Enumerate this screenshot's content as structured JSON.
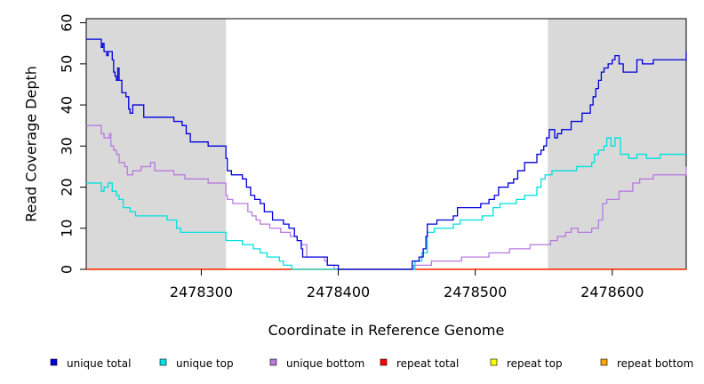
{
  "chart_data": {
    "type": "line",
    "title": "",
    "xlabel": "Coordinate in Reference Genome",
    "ylabel": "Read Coverage Depth",
    "xlim": [
      2478216,
      2478654
    ],
    "ylim": [
      0,
      61
    ],
    "x_ticks": [
      2478300,
      2478400,
      2478500,
      2478600
    ],
    "y_ticks": [
      0,
      10,
      20,
      30,
      40,
      50,
      60
    ],
    "shaded_regions": [
      [
        2478216,
        2478318
      ],
      [
        2478553,
        2478654
      ]
    ],
    "grid": false,
    "legend_position": "bottom",
    "series": [
      {
        "name": "unique total",
        "color": "#0000dd",
        "points": [
          [
            2478216,
            56
          ],
          [
            2478225,
            56
          ],
          [
            2478227,
            54
          ],
          [
            2478228,
            55
          ],
          [
            2478229,
            53
          ],
          [
            2478231,
            52
          ],
          [
            2478232,
            53
          ],
          [
            2478235,
            51
          ],
          [
            2478236,
            48
          ],
          [
            2478237,
            47
          ],
          [
            2478238,
            46
          ],
          [
            2478239,
            49
          ],
          [
            2478240,
            46
          ],
          [
            2478242,
            43
          ],
          [
            2478245,
            42
          ],
          [
            2478247,
            39
          ],
          [
            2478248,
            38
          ],
          [
            2478250,
            40
          ],
          [
            2478258,
            37
          ],
          [
            2478266,
            37
          ],
          [
            2478270,
            37
          ],
          [
            2478280,
            36
          ],
          [
            2478286,
            35
          ],
          [
            2478289,
            33
          ],
          [
            2478292,
            31
          ],
          [
            2478296,
            31
          ],
          [
            2478305,
            30
          ],
          [
            2478313,
            30
          ],
          [
            2478318,
            27
          ],
          [
            2478319,
            24
          ],
          [
            2478322,
            23
          ],
          [
            2478330,
            22
          ],
          [
            2478333,
            20
          ],
          [
            2478336,
            18
          ],
          [
            2478339,
            17
          ],
          [
            2478343,
            16
          ],
          [
            2478346,
            14
          ],
          [
            2478352,
            12
          ],
          [
            2478360,
            11
          ],
          [
            2478364,
            10
          ],
          [
            2478368,
            8
          ],
          [
            2478370,
            7
          ],
          [
            2478373,
            5
          ],
          [
            2478374,
            3
          ],
          [
            2478385,
            3
          ],
          [
            2478392,
            1
          ],
          [
            2478398,
            1
          ],
          [
            2478400,
            0
          ],
          [
            2478453,
            0
          ],
          [
            2478454,
            2
          ],
          [
            2478459,
            3
          ],
          [
            2478462,
            5
          ],
          [
            2478464,
            8
          ],
          [
            2478465,
            11
          ],
          [
            2478472,
            12
          ],
          [
            2478484,
            13
          ],
          [
            2478487,
            15
          ],
          [
            2478504,
            16
          ],
          [
            2478510,
            17
          ],
          [
            2478514,
            18
          ],
          [
            2478517,
            20
          ],
          [
            2478524,
            21
          ],
          [
            2478528,
            22
          ],
          [
            2478531,
            24
          ],
          [
            2478536,
            26
          ],
          [
            2478545,
            28
          ],
          [
            2478548,
            29
          ],
          [
            2478550,
            30
          ],
          [
            2478552,
            32
          ],
          [
            2478554,
            34
          ],
          [
            2478558,
            32
          ],
          [
            2478560,
            33
          ],
          [
            2478563,
            34
          ],
          [
            2478570,
            36
          ],
          [
            2478578,
            38
          ],
          [
            2478584,
            40
          ],
          [
            2478586,
            42
          ],
          [
            2478588,
            44
          ],
          [
            2478590,
            46
          ],
          [
            2478592,
            48
          ],
          [
            2478594,
            49
          ],
          [
            2478597,
            50
          ],
          [
            2478600,
            51
          ],
          [
            2478602,
            52
          ],
          [
            2478605,
            50
          ],
          [
            2478608,
            48
          ],
          [
            2478618,
            51
          ],
          [
            2478622,
            50
          ],
          [
            2478630,
            51
          ],
          [
            2478635,
            51
          ],
          [
            2478645,
            51
          ],
          [
            2478654,
            53
          ]
        ]
      },
      {
        "name": "unique top",
        "color": "#00e0e0",
        "points": [
          [
            2478216,
            21
          ],
          [
            2478225,
            21
          ],
          [
            2478227,
            19
          ],
          [
            2478229,
            20
          ],
          [
            2478232,
            21
          ],
          [
            2478235,
            19
          ],
          [
            2478238,
            18
          ],
          [
            2478240,
            17
          ],
          [
            2478243,
            15
          ],
          [
            2478248,
            14
          ],
          [
            2478252,
            13
          ],
          [
            2478260,
            13
          ],
          [
            2478275,
            12
          ],
          [
            2478282,
            10
          ],
          [
            2478285,
            9
          ],
          [
            2478295,
            9
          ],
          [
            2478305,
            9
          ],
          [
            2478313,
            9
          ],
          [
            2478318,
            7
          ],
          [
            2478320,
            7
          ],
          [
            2478330,
            6
          ],
          [
            2478338,
            5
          ],
          [
            2478343,
            4
          ],
          [
            2478348,
            3
          ],
          [
            2478357,
            2
          ],
          [
            2478360,
            1
          ],
          [
            2478366,
            0
          ],
          [
            2478453,
            0
          ],
          [
            2478456,
            2
          ],
          [
            2478461,
            4
          ],
          [
            2478465,
            9
          ],
          [
            2478470,
            10
          ],
          [
            2478478,
            10
          ],
          [
            2478484,
            11
          ],
          [
            2478489,
            12
          ],
          [
            2478497,
            12
          ],
          [
            2478505,
            13
          ],
          [
            2478513,
            15
          ],
          [
            2478518,
            16
          ],
          [
            2478530,
            17
          ],
          [
            2478536,
            18
          ],
          [
            2478545,
            20
          ],
          [
            2478548,
            22
          ],
          [
            2478551,
            23
          ],
          [
            2478556,
            24
          ],
          [
            2478566,
            24
          ],
          [
            2478574,
            25
          ],
          [
            2478578,
            25
          ],
          [
            2478585,
            26
          ],
          [
            2478587,
            28
          ],
          [
            2478590,
            29
          ],
          [
            2478594,
            30
          ],
          [
            2478596,
            32
          ],
          [
            2478599,
            30
          ],
          [
            2478602,
            32
          ],
          [
            2478606,
            28
          ],
          [
            2478612,
            27
          ],
          [
            2478618,
            28
          ],
          [
            2478625,
            27
          ],
          [
            2478635,
            28
          ],
          [
            2478645,
            28
          ],
          [
            2478654,
            28
          ]
        ]
      },
      {
        "name": "unique bottom",
        "color": "#b87ae0",
        "points": [
          [
            2478216,
            35
          ],
          [
            2478225,
            35
          ],
          [
            2478227,
            33
          ],
          [
            2478229,
            32
          ],
          [
            2478233,
            33
          ],
          [
            2478234,
            30
          ],
          [
            2478236,
            29
          ],
          [
            2478238,
            28
          ],
          [
            2478240,
            26
          ],
          [
            2478244,
            25
          ],
          [
            2478246,
            23
          ],
          [
            2478250,
            24
          ],
          [
            2478256,
            25
          ],
          [
            2478263,
            26
          ],
          [
            2478266,
            24
          ],
          [
            2478270,
            24
          ],
          [
            2478280,
            23
          ],
          [
            2478288,
            22
          ],
          [
            2478295,
            22
          ],
          [
            2478305,
            21
          ],
          [
            2478312,
            21
          ],
          [
            2478318,
            18
          ],
          [
            2478319,
            17
          ],
          [
            2478323,
            16
          ],
          [
            2478334,
            14
          ],
          [
            2478337,
            13
          ],
          [
            2478340,
            12
          ],
          [
            2478343,
            11
          ],
          [
            2478350,
            10
          ],
          [
            2478358,
            9
          ],
          [
            2478365,
            8
          ],
          [
            2478370,
            7
          ],
          [
            2478373,
            6
          ],
          [
            2478377,
            3
          ],
          [
            2478385,
            3
          ],
          [
            2478390,
            2
          ],
          [
            2478392,
            1
          ],
          [
            2478397,
            0
          ],
          [
            2478453,
            0
          ],
          [
            2478455,
            1
          ],
          [
            2478460,
            1
          ],
          [
            2478468,
            2
          ],
          [
            2478490,
            3
          ],
          [
            2478510,
            4
          ],
          [
            2478525,
            5
          ],
          [
            2478540,
            6
          ],
          [
            2478555,
            7
          ],
          [
            2478560,
            8
          ],
          [
            2478566,
            9
          ],
          [
            2478570,
            10
          ],
          [
            2478575,
            9
          ],
          [
            2478585,
            10
          ],
          [
            2478590,
            12
          ],
          [
            2478593,
            16
          ],
          [
            2478596,
            17
          ],
          [
            2478600,
            17
          ],
          [
            2478605,
            19
          ],
          [
            2478615,
            21
          ],
          [
            2478620,
            22
          ],
          [
            2478630,
            23
          ],
          [
            2478645,
            23
          ],
          [
            2478652,
            23
          ],
          [
            2478654,
            25
          ]
        ]
      },
      {
        "name": "repeat total",
        "color": "#ff0000",
        "points": [
          [
            2478216,
            0
          ],
          [
            2478654,
            0
          ]
        ]
      },
      {
        "name": "repeat top",
        "color": "#ffff00",
        "points": [
          [
            2478216,
            0
          ],
          [
            2478654,
            0
          ]
        ]
      },
      {
        "name": "repeat bottom",
        "color": "#ffa500",
        "points": [
          [
            2478216,
            0
          ],
          [
            2478654,
            0
          ]
        ]
      }
    ]
  }
}
